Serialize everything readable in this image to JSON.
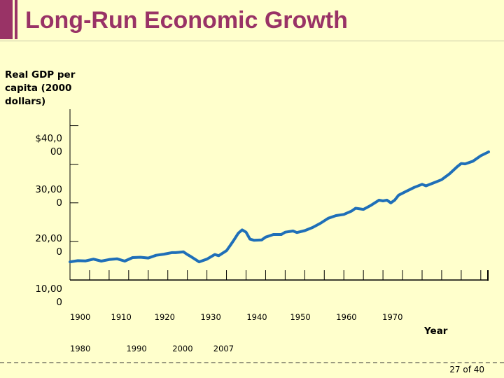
{
  "slide": {
    "title": "Long-Run Economic Growth",
    "page_number": "27 of 40"
  },
  "chart_data": {
    "type": "line",
    "title": "Long-Run Economic Growth",
    "ylabel": "Real GDP per capita (2000 dollars)",
    "xlabel": "Year",
    "y_tick_labels": [
      "$40,0\n00",
      "30,00\n0",
      "20,00\n0",
      "10,00\n0"
    ],
    "x_tick_labels_line1": "1900        1910         1920          1930          1940         1950          1960          1970",
    "x_tick_labels_line2": "1980              1990          2000        2007",
    "xlim": [
      1900,
      2007
    ],
    "ylim": [
      0,
      45000
    ],
    "series": [
      {
        "name": "Real GDP per capita",
        "color": "#1f6fb8",
        "points": [
          [
            1900,
            4700
          ],
          [
            1902,
            5000
          ],
          [
            1904,
            4950
          ],
          [
            1906,
            5400
          ],
          [
            1908,
            4900
          ],
          [
            1910,
            5300
          ],
          [
            1912,
            5500
          ],
          [
            1914,
            4900
          ],
          [
            1916,
            5800
          ],
          [
            1918,
            5900
          ],
          [
            1920,
            5700
          ],
          [
            1922,
            6400
          ],
          [
            1924,
            6700
          ],
          [
            1926,
            7100
          ],
          [
            1927,
            7100
          ],
          [
            1929,
            7300
          ],
          [
            1930,
            6600
          ],
          [
            1931,
            6000
          ],
          [
            1933,
            4700
          ],
          [
            1935,
            5400
          ],
          [
            1937,
            6600
          ],
          [
            1938,
            6300
          ],
          [
            1940,
            7600
          ],
          [
            1941,
            9000
          ],
          [
            1942,
            10500
          ],
          [
            1943,
            12100
          ],
          [
            1944,
            13000
          ],
          [
            1945,
            12400
          ],
          [
            1946,
            10600
          ],
          [
            1947,
            10300
          ],
          [
            1949,
            10400
          ],
          [
            1950,
            11100
          ],
          [
            1952,
            11800
          ],
          [
            1954,
            11800
          ],
          [
            1955,
            12400
          ],
          [
            1957,
            12700
          ],
          [
            1958,
            12300
          ],
          [
            1960,
            12800
          ],
          [
            1962,
            13600
          ],
          [
            1964,
            14700
          ],
          [
            1966,
            16000
          ],
          [
            1968,
            16700
          ],
          [
            1970,
            17000
          ],
          [
            1972,
            17900
          ],
          [
            1973,
            18600
          ],
          [
            1975,
            18300
          ],
          [
            1977,
            19400
          ],
          [
            1979,
            20700
          ],
          [
            1980,
            20500
          ],
          [
            1981,
            20700
          ],
          [
            1982,
            20000
          ],
          [
            1983,
            20700
          ],
          [
            1984,
            22000
          ],
          [
            1986,
            23000
          ],
          [
            1988,
            24000
          ],
          [
            1990,
            24800
          ],
          [
            1991,
            24400
          ],
          [
            1993,
            25200
          ],
          [
            1995,
            26000
          ],
          [
            1997,
            27500
          ],
          [
            1999,
            29400
          ],
          [
            2000,
            30200
          ],
          [
            2001,
            30100
          ],
          [
            2003,
            30800
          ],
          [
            2005,
            32200
          ],
          [
            2007,
            33200
          ]
        ]
      }
    ]
  }
}
